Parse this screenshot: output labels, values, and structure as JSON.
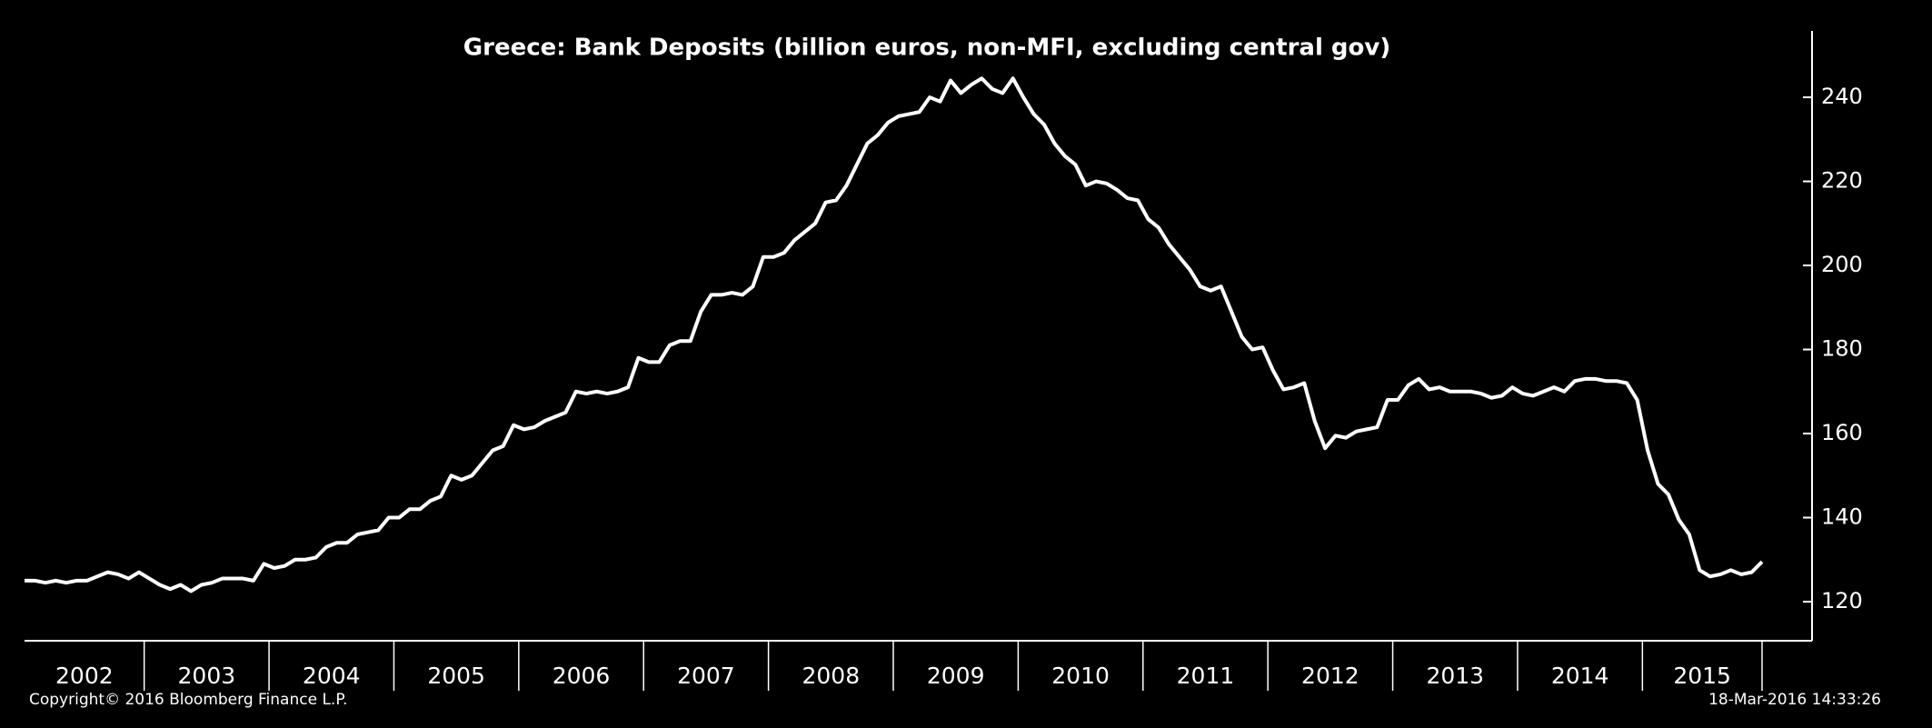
{
  "chart_data": {
    "type": "line",
    "title": "Greece: Bank Deposits (billion euros, non-MFI, excluding central gov)",
    "source": "Copyright© 2016 Bloomberg Finance L.P.",
    "timestamp": "18-Mar-2016 14:33:26",
    "color": "#ffffff",
    "categories": [
      null,
      null,
      null,
      null,
      null,
      null,
      "2002",
      null,
      null,
      null,
      null,
      null,
      null,
      null,
      null,
      null,
      null,
      null,
      "2003",
      null,
      null,
      null,
      null,
      null,
      null,
      null,
      null,
      null,
      null,
      null,
      "2004",
      null,
      null,
      null,
      null,
      null,
      null,
      null,
      null,
      null,
      null,
      null,
      "2005",
      null,
      null,
      null,
      null,
      null,
      null,
      null,
      null,
      null,
      null,
      null,
      "2006",
      null,
      null,
      null,
      null,
      null,
      null,
      null,
      null,
      null,
      null,
      null,
      "2007",
      null,
      null,
      null,
      null,
      null,
      null,
      null,
      null,
      null,
      null,
      null,
      "2008",
      null,
      null,
      null,
      null,
      null,
      null,
      null,
      null,
      null,
      null,
      null,
      "2009",
      null,
      null,
      null,
      null,
      null,
      null,
      null,
      null,
      null,
      null,
      null,
      "2010",
      null,
      null,
      null,
      null,
      null,
      null,
      null,
      null,
      null,
      null,
      null,
      "2011",
      null,
      null,
      null,
      null,
      null,
      null,
      null,
      null,
      null,
      null,
      null,
      "2012",
      null,
      null,
      null,
      null,
      null,
      null,
      null,
      null,
      null,
      null,
      null,
      "2013",
      null,
      null,
      null,
      null,
      null,
      null,
      null,
      null,
      null,
      null,
      null,
      "2014",
      null,
      null,
      null,
      null,
      null,
      null,
      null,
      null,
      null,
      null,
      null,
      "2015",
      null,
      null,
      null,
      null,
      null
    ],
    "values": [
      125,
      125,
      124.5,
      125,
      124.5,
      125,
      125,
      126,
      127,
      126.5,
      125.5,
      127,
      125.5,
      124,
      123,
      124,
      122.5,
      124,
      124.5,
      125.5,
      125.5,
      125.5,
      125,
      129,
      128,
      128.5,
      130,
      130,
      130.5,
      133,
      134,
      134,
      136,
      136.5,
      137,
      140,
      140,
      142,
      142,
      144,
      145,
      150,
      149,
      150,
      153,
      156,
      157,
      162,
      161,
      161.5,
      163,
      164,
      165,
      170,
      169.5,
      170,
      169.5,
      170,
      171,
      178,
      177,
      177,
      181,
      182,
      182,
      189,
      193,
      193,
      193.5,
      193,
      195,
      202,
      202,
      203,
      206,
      208,
      210,
      215,
      215.5,
      219,
      224,
      229,
      231,
      234,
      235.5,
      236,
      236.5,
      240,
      239,
      244,
      241,
      243,
      244.5,
      242,
      241,
      244.5,
      240,
      236,
      233.5,
      229,
      226,
      224,
      219,
      220,
      219.5,
      218,
      216,
      215.5,
      211,
      209,
      205,
      202,
      199,
      195,
      194,
      195,
      189,
      183,
      180,
      180.5,
      175,
      170.5,
      171,
      172,
      163,
      156.5,
      159.5,
      159,
      160.5,
      161,
      161.5,
      168,
      168,
      171.5,
      173,
      170.5,
      171,
      170,
      170,
      170,
      169.5,
      168.5,
      169,
      171,
      169.5,
      169,
      170,
      171,
      170,
      172.5,
      173,
      173,
      172.5,
      172.5,
      172,
      168,
      156,
      148,
      145.5,
      139.5,
      136,
      127.5,
      126,
      126.5,
      127.5,
      126.5,
      127,
      129.5
    ],
    "ylim": [
      110.7,
      255.8
    ],
    "yticks": [
      120,
      140,
      160,
      180,
      200,
      220,
      240
    ],
    "grid": false
  }
}
